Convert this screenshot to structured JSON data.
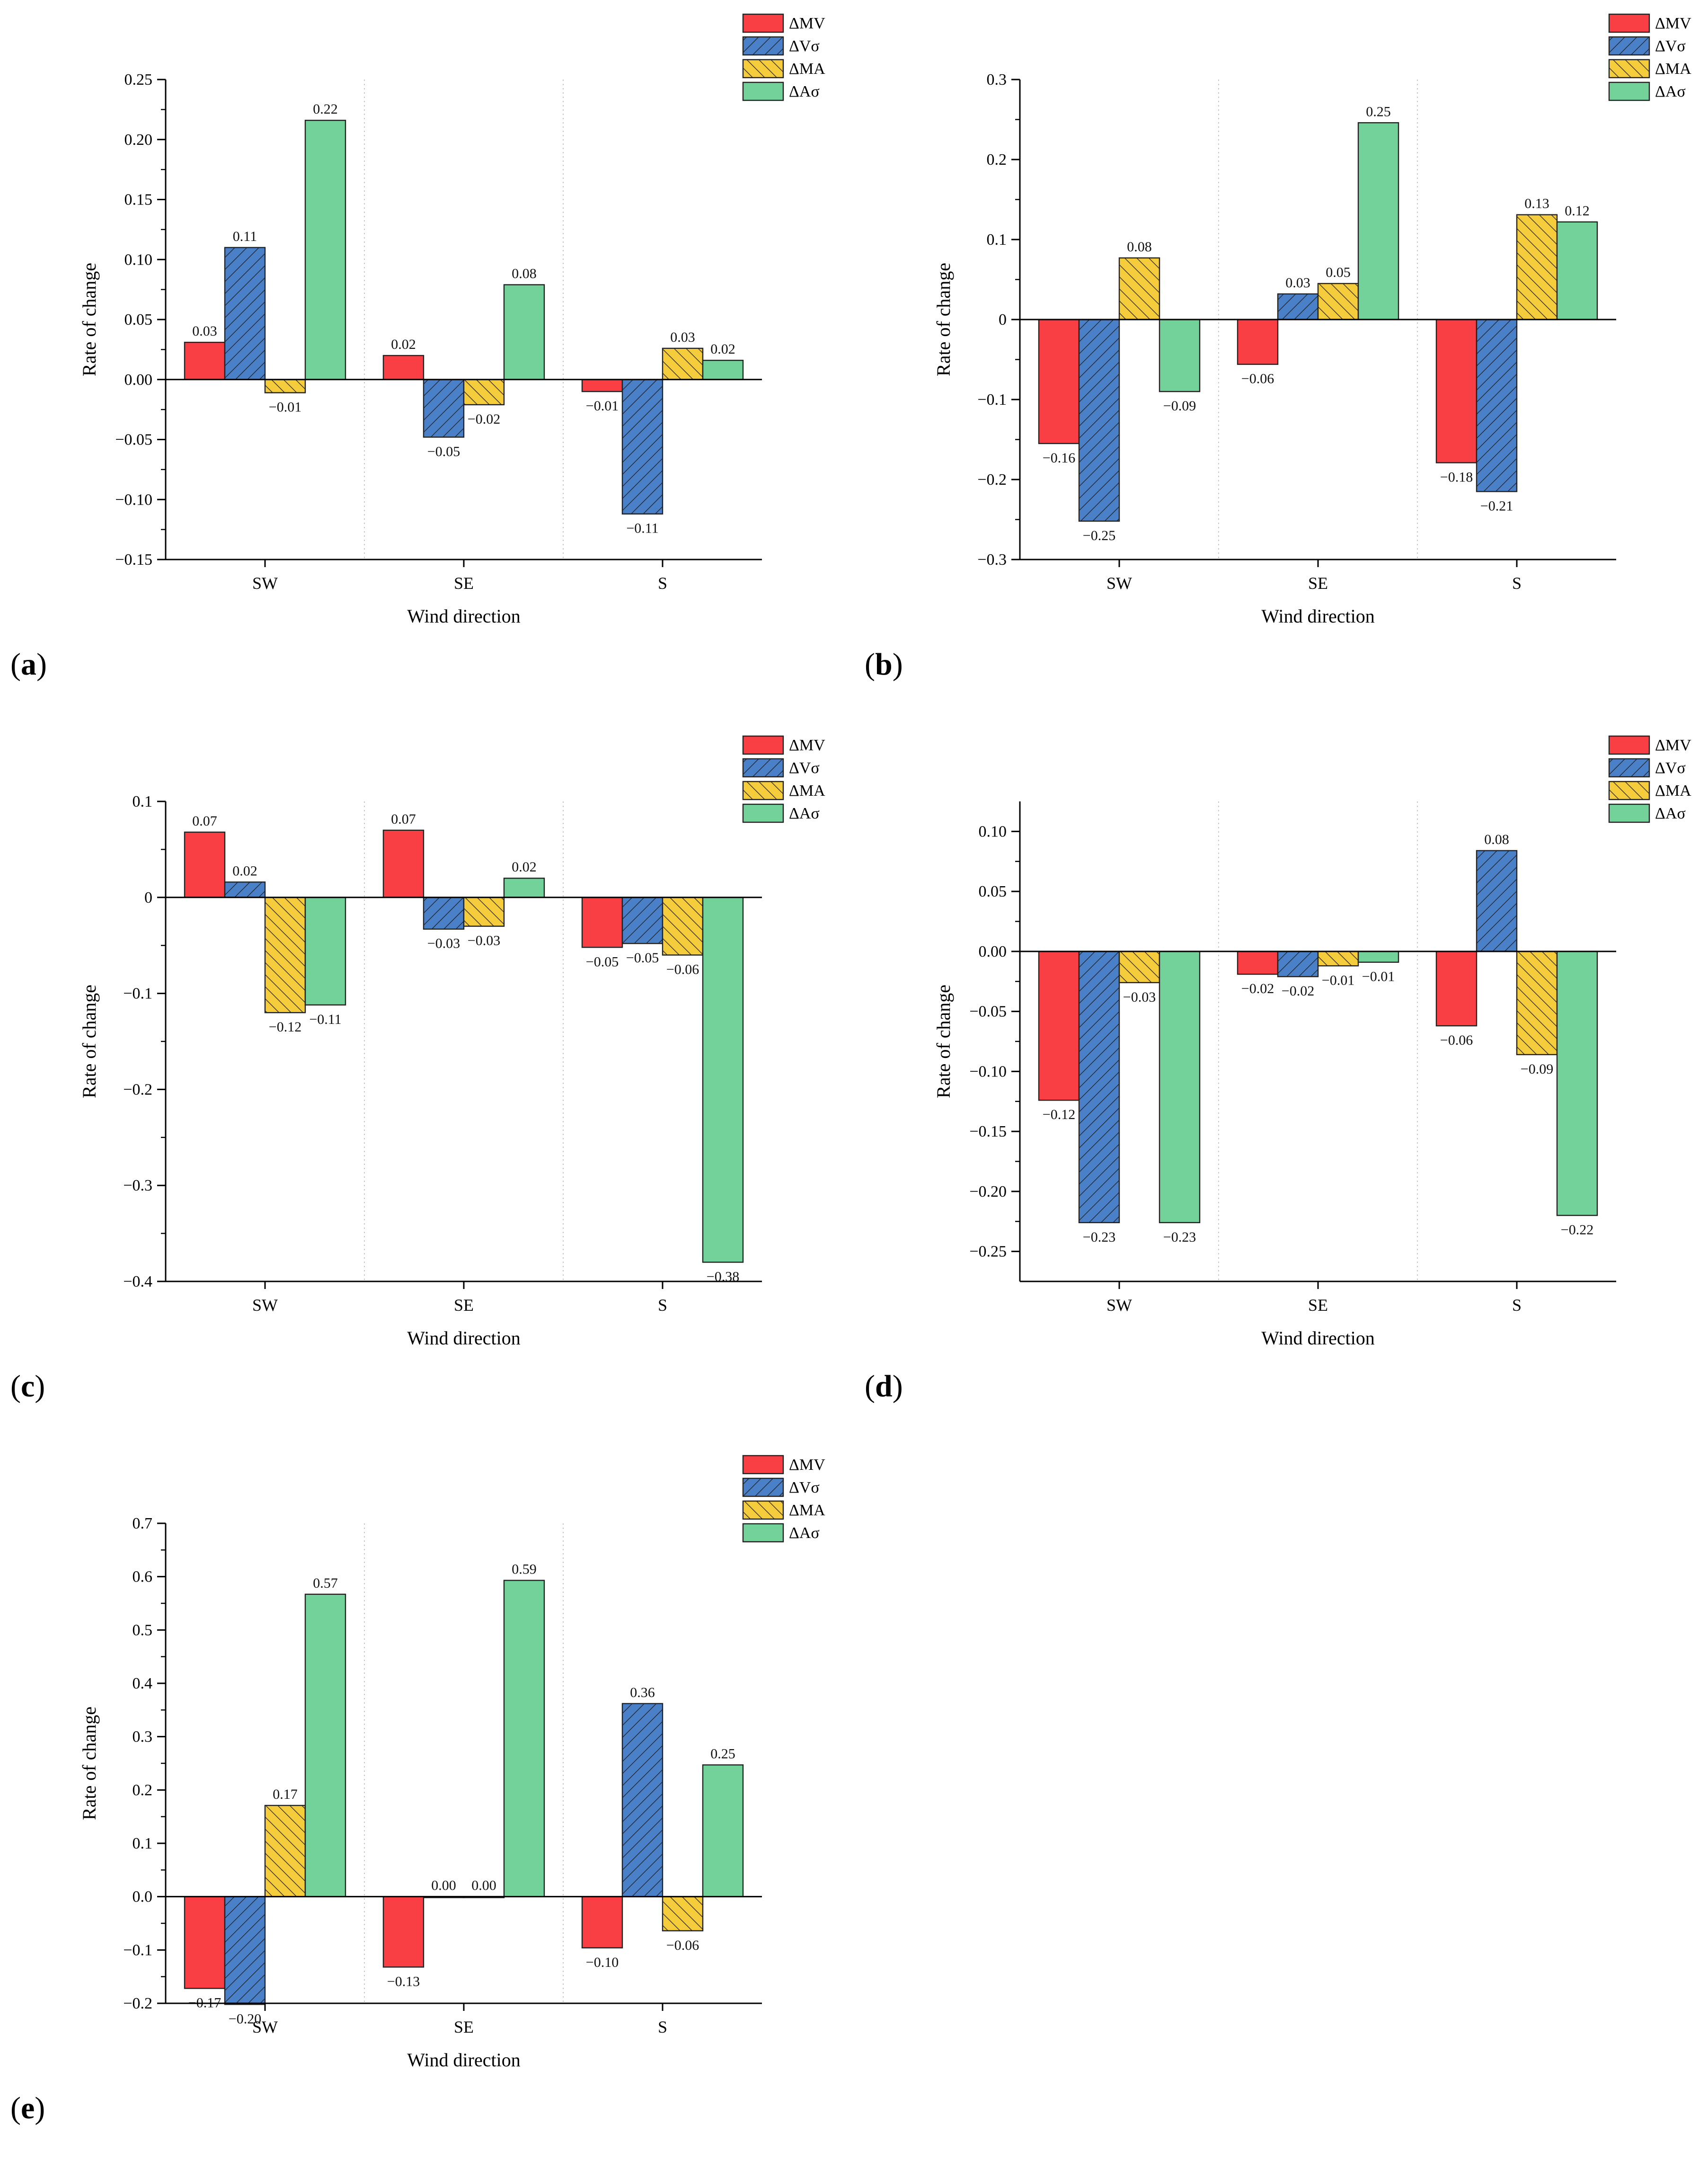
{
  "colors": {
    "mv": "#f93f44",
    "vs": "#4a80c8",
    "ma": "#f5cc3c",
    "as": "#72d29a"
  },
  "chart_data": [
    {
      "panel": "a",
      "type": "bar",
      "categories": [
        "SW",
        "SE",
        "S"
      ],
      "xlabel": "Wind direction",
      "ylabel": "Rate of change",
      "ylim": [
        -0.15,
        0.25
      ],
      "ticks": [
        -0.15,
        -0.1,
        -0.05,
        0.0,
        0.05,
        0.1,
        0.15,
        0.2,
        0.25
      ],
      "tick_decimals": 2,
      "series": [
        {
          "name": "ΔMV",
          "key": "mv",
          "values": [
            0.031,
            0.02,
            -0.01
          ],
          "labels": [
            "0.03",
            "0.02",
            "−0.01"
          ]
        },
        {
          "name": "ΔVσ",
          "key": "vs",
          "values": [
            0.11,
            -0.048,
            -0.112
          ],
          "labels": [
            "0.11",
            "−0.05",
            "−0.11"
          ]
        },
        {
          "name": "ΔMA",
          "key": "ma",
          "values": [
            -0.011,
            -0.021,
            0.026
          ],
          "labels": [
            "−0.01",
            "−0.02",
            "0.03"
          ]
        },
        {
          "name": "ΔAσ",
          "key": "as",
          "values": [
            0.216,
            0.079,
            0.016
          ],
          "labels": [
            "0.22",
            "0.08",
            "0.02"
          ]
        }
      ]
    },
    {
      "panel": "b",
      "type": "bar",
      "categories": [
        "SW",
        "SE",
        "S"
      ],
      "xlabel": "Wind direction",
      "ylabel": "Rate of change",
      "ylim": [
        -0.3,
        0.3
      ],
      "ticks": [
        -0.3,
        -0.2,
        -0.1,
        0,
        0.1,
        0.2,
        0.3
      ],
      "tick_decimals": 1,
      "series": [
        {
          "name": "ΔMV",
          "key": "mv",
          "values": [
            -0.155,
            -0.056,
            -0.179
          ],
          "labels": [
            "−0.16",
            "−0.06",
            "−0.18"
          ]
        },
        {
          "name": "ΔVσ",
          "key": "vs",
          "values": [
            -0.252,
            0.032,
            -0.215
          ],
          "labels": [
            "−0.25",
            "0.03",
            "−0.21"
          ]
        },
        {
          "name": "ΔMA",
          "key": "ma",
          "values": [
            0.077,
            0.045,
            0.131
          ],
          "labels": [
            "0.08",
            "0.05",
            "0.13"
          ]
        },
        {
          "name": "ΔAσ",
          "key": "as",
          "values": [
            -0.09,
            0.246,
            0.122
          ],
          "labels": [
            "−0.09",
            "0.25",
            "0.12"
          ]
        }
      ]
    },
    {
      "panel": "c",
      "type": "bar",
      "categories": [
        "SW",
        "SE",
        "S"
      ],
      "xlabel": "Wind direction",
      "ylabel": "Rate of change",
      "ylim": [
        -0.4,
        0.1
      ],
      "ticks": [
        -0.4,
        -0.3,
        -0.2,
        -0.1,
        0,
        0.1
      ],
      "tick_decimals": 1,
      "series": [
        {
          "name": "ΔMV",
          "key": "mv",
          "values": [
            0.068,
            0.07,
            -0.052
          ],
          "labels": [
            "0.07",
            "0.07",
            "−0.05"
          ]
        },
        {
          "name": "ΔVσ",
          "key": "vs",
          "values": [
            0.016,
            -0.033,
            -0.048
          ],
          "labels": [
            "0.02",
            "−0.03",
            "−0.05"
          ]
        },
        {
          "name": "ΔMA",
          "key": "ma",
          "values": [
            -0.12,
            -0.03,
            -0.06
          ],
          "labels": [
            "−0.12",
            "−0.03",
            "−0.06"
          ]
        },
        {
          "name": "ΔAσ",
          "key": "as",
          "values": [
            -0.112,
            0.02,
            -0.38
          ],
          "labels": [
            "−0.11",
            "0.02",
            "−0.38"
          ]
        }
      ]
    },
    {
      "panel": "d",
      "type": "bar",
      "categories": [
        "SW",
        "SE",
        "S"
      ],
      "xlabel": "Wind direction",
      "ylabel": "Rate of change",
      "ylim": [
        -0.275,
        0.125
      ],
      "ticks": [
        -0.25,
        -0.2,
        -0.15,
        -0.1,
        -0.05,
        0.0,
        0.05,
        0.1
      ],
      "tick_decimals": 2,
      "series": [
        {
          "name": "ΔMV",
          "key": "mv",
          "values": [
            -0.124,
            -0.019,
            -0.062
          ],
          "labels": [
            "−0.12",
            "−0.02",
            "−0.06"
          ]
        },
        {
          "name": "ΔVσ",
          "key": "vs",
          "values": [
            -0.226,
            -0.021,
            0.084
          ],
          "labels": [
            "−0.23",
            "−0.02",
            "0.08"
          ]
        },
        {
          "name": "ΔMA",
          "key": "ma",
          "values": [
            -0.026,
            -0.012,
            -0.086
          ],
          "labels": [
            "−0.03",
            "−0.01",
            "−0.09"
          ]
        },
        {
          "name": "ΔAσ",
          "key": "as",
          "values": [
            -0.226,
            -0.009,
            -0.22
          ],
          "labels": [
            "−0.23",
            "−0.01",
            "−0.22"
          ]
        }
      ]
    },
    {
      "panel": "e",
      "type": "bar",
      "categories": [
        "SW",
        "SE",
        "S"
      ],
      "xlabel": "Wind direction",
      "ylabel": "Rate of change",
      "ylim": [
        -0.2,
        0.7
      ],
      "ticks": [
        -0.2,
        -0.1,
        0.0,
        0.1,
        0.2,
        0.3,
        0.4,
        0.5,
        0.6,
        0.7
      ],
      "tick_decimals": 1,
      "series": [
        {
          "name": "ΔMV",
          "key": "mv",
          "values": [
            -0.172,
            -0.132,
            -0.096
          ],
          "labels": [
            "−0.17",
            "−0.13",
            "−0.10"
          ]
        },
        {
          "name": "ΔVσ",
          "key": "vs",
          "values": [
            -0.202,
            0.0,
            0.362
          ],
          "labels": [
            "−0.20",
            "0.00",
            "0.36"
          ]
        },
        {
          "name": "ΔMA",
          "key": "ma",
          "values": [
            0.171,
            0.0,
            -0.064
          ],
          "labels": [
            "0.17",
            "0.00",
            "−0.06"
          ]
        },
        {
          "name": "ΔAσ",
          "key": "as",
          "values": [
            0.567,
            0.593,
            0.247
          ],
          "labels": [
            "0.57",
            "0.59",
            "0.25"
          ]
        }
      ]
    }
  ]
}
